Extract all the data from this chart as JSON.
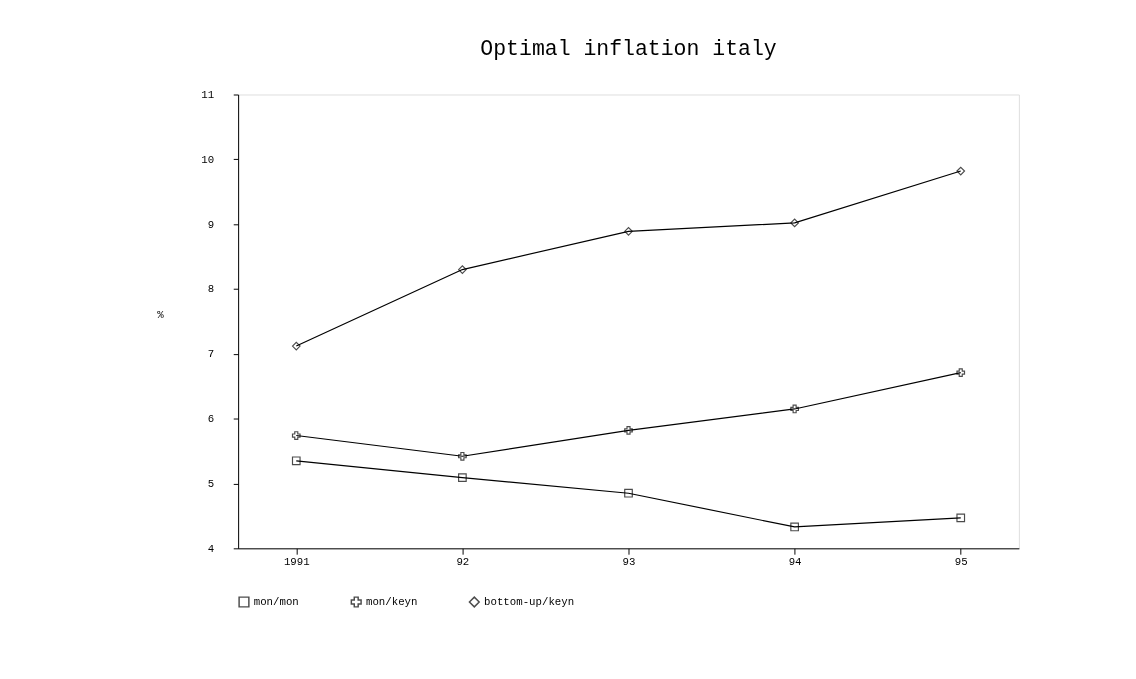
{
  "chart_data": {
    "type": "line",
    "title": "Optimal inflation italy",
    "ylabel": "%",
    "categories": [
      "1991",
      "92",
      "93",
      "94",
      "95"
    ],
    "series": [
      {
        "name": "mon/mon",
        "color": "#000000",
        "marker": "square",
        "values": [
          5.35,
          5.09,
          4.85,
          4.33,
          4.47
        ]
      },
      {
        "name": "mon/keyn",
        "color": "#000000",
        "marker": "cross",
        "values": [
          5.74,
          5.42,
          5.82,
          6.15,
          6.71
        ]
      },
      {
        "name": "bottom-up/keyn",
        "color": "#000000",
        "marker": "diamond",
        "values": [
          7.12,
          8.3,
          8.89,
          9.02,
          9.82
        ]
      }
    ],
    "ylim": [
      4,
      11
    ],
    "yticks": [
      4,
      5,
      6,
      7,
      8,
      9,
      10,
      11
    ],
    "grid": false,
    "legend": "bottom",
    "line_style": "solid"
  }
}
